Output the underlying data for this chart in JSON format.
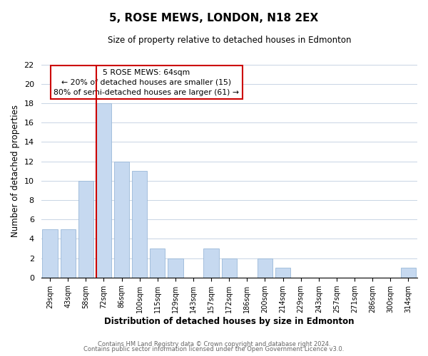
{
  "title": "5, ROSE MEWS, LONDON, N18 2EX",
  "subtitle": "Size of property relative to detached houses in Edmonton",
  "xlabel": "Distribution of detached houses by size in Edmonton",
  "ylabel": "Number of detached properties",
  "categories": [
    "29sqm",
    "43sqm",
    "58sqm",
    "72sqm",
    "86sqm",
    "100sqm",
    "115sqm",
    "129sqm",
    "143sqm",
    "157sqm",
    "172sqm",
    "186sqm",
    "200sqm",
    "214sqm",
    "229sqm",
    "243sqm",
    "257sqm",
    "271sqm",
    "286sqm",
    "300sqm",
    "314sqm"
  ],
  "values": [
    5,
    5,
    10,
    18,
    12,
    11,
    3,
    2,
    0,
    3,
    2,
    0,
    2,
    1,
    0,
    0,
    0,
    0,
    0,
    0,
    1
  ],
  "bar_color": "#c6d9f0",
  "bar_edge_color": "#9ab8d8",
  "highlight_line_color": "#cc0000",
  "ylim": [
    0,
    22
  ],
  "yticks": [
    0,
    2,
    4,
    6,
    8,
    10,
    12,
    14,
    16,
    18,
    20,
    22
  ],
  "annotation_line1": "5 ROSE MEWS: 64sqm",
  "annotation_line2": "← 20% of detached houses are smaller (15)",
  "annotation_line3": "80% of semi-detached houses are larger (61) →",
  "box_edge_color": "#cc0000",
  "footer_line1": "Contains HM Land Registry data © Crown copyright and database right 2024.",
  "footer_line2": "Contains public sector information licensed under the Open Government Licence v3.0.",
  "background_color": "#ffffff",
  "grid_color": "#c8d4e4"
}
